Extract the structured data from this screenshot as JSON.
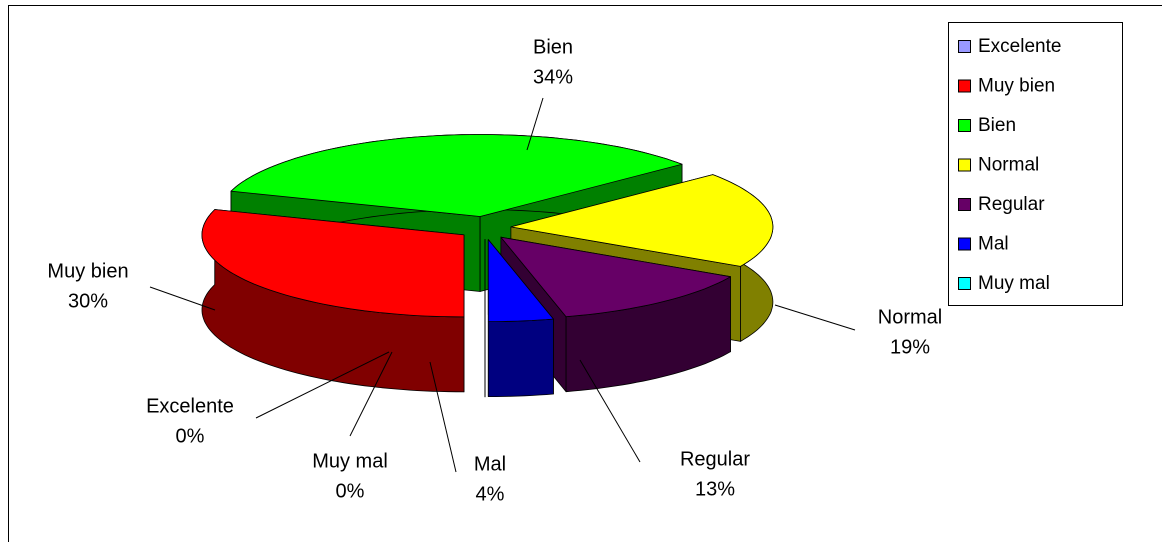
{
  "chart_data": {
    "type": "pie3d",
    "categories": [
      "Excelente",
      "Muy bien",
      "Bien",
      "Normal",
      "Regular",
      "Mal",
      "Muy mal"
    ],
    "values": [
      0,
      30,
      34,
      19,
      13,
      4,
      0
    ],
    "value_labels": [
      "0%",
      "30%",
      "34%",
      "19%",
      "13%",
      "4%",
      "0%"
    ],
    "colors": [
      "#9999ff",
      "#ff0000",
      "#00ff00",
      "#ffff00",
      "#660066",
      "#0000ff",
      "#00ffff"
    ],
    "legend": "right"
  }
}
